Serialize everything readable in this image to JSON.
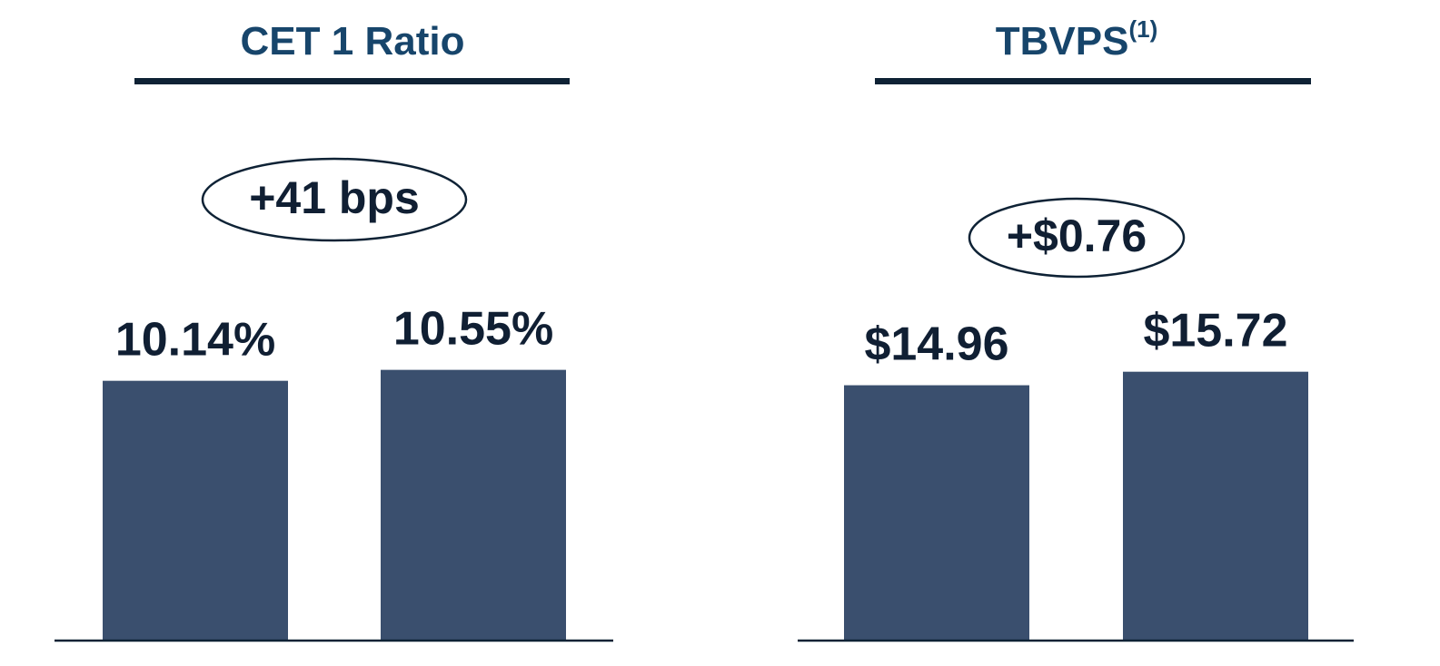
{
  "chart_data": [
    {
      "type": "bar",
      "title": "CET 1 Ratio",
      "annotation": "+41 bps",
      "categories": [
        null,
        null
      ],
      "values": [
        10.14,
        10.55
      ],
      "value_labels": [
        "10.14%",
        "10.55%"
      ],
      "color": "#3a4f6e",
      "ylim": [
        0.4,
        12
      ]
    },
    {
      "type": "bar",
      "title": "TBVPS",
      "title_note": "(1)",
      "annotation": "+$0.76",
      "categories": [
        null,
        null
      ],
      "values": [
        14.96,
        15.72
      ],
      "value_labels": [
        "$14.96",
        "$15.72"
      ],
      "color": "#3a4f6e",
      "ylim": [
        0.6,
        18
      ]
    }
  ]
}
